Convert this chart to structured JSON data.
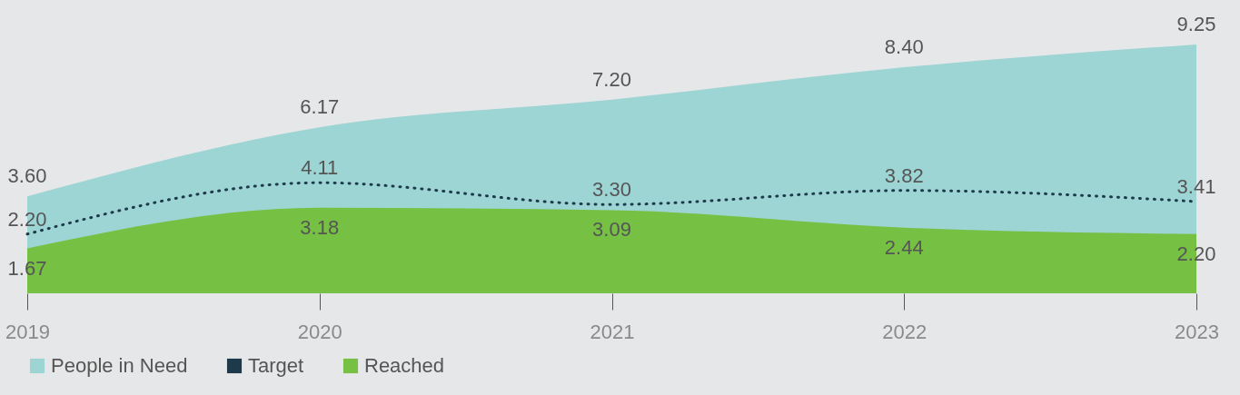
{
  "chart_data": {
    "type": "area",
    "categories": [
      "2019",
      "2020",
      "2021",
      "2022",
      "2023"
    ],
    "series": [
      {
        "name": "People in Need",
        "color": "#9dd4d4",
        "values": [
          3.6,
          6.17,
          7.2,
          8.4,
          9.25
        ],
        "value_labels": [
          "3.60",
          "6.17",
          "7.20",
          "8.40",
          "9.25"
        ]
      },
      {
        "name": "Target",
        "type": "line",
        "color": "#1e3a4a",
        "line_style": "dotted",
        "values": [
          2.2,
          4.11,
          3.3,
          3.82,
          3.41
        ],
        "value_labels": [
          "2.20",
          "4.11",
          "3.30",
          "3.82",
          "3.41"
        ]
      },
      {
        "name": "Reached",
        "color": "#76c043",
        "values": [
          1.67,
          3.18,
          3.09,
          2.44,
          2.2
        ],
        "value_labels": [
          "1.67",
          "3.18",
          "3.09",
          "2.44",
          "2.20"
        ]
      }
    ],
    "ylim": [
      0,
      10.9
    ],
    "tick_labels": "x",
    "grid": false,
    "legend": "bottom"
  }
}
